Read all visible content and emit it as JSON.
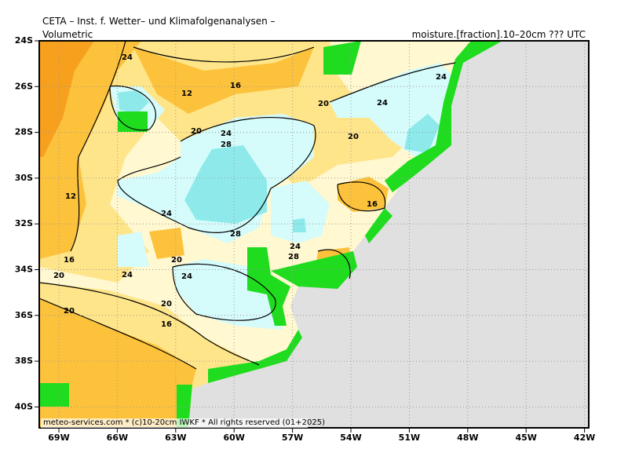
{
  "header": {
    "title": "CETA – Inst. f. Wetter– und Klimafolgenanalysen –",
    "left_label": "Volumetric",
    "right_label": "moisture.[fraction].10–20cm ??? UTC"
  },
  "footer": "meteo-services.com * (c)10-20cm IWKF * All rights reserved (01+2025)",
  "lat_labels": [
    "24S",
    "26S",
    "28S",
    "30S",
    "32S",
    "34S",
    "36S",
    "38S",
    "40S"
  ],
  "lon_labels": [
    "69W",
    "66W",
    "63W",
    "60W",
    "57W",
    "54W",
    "51W",
    "48W",
    "45W",
    "42W"
  ],
  "contour_labels": [
    "24",
    "12",
    "16",
    "20",
    "24",
    "24",
    "20",
    "24",
    "28",
    "20",
    "12",
    "16",
    "24",
    "28",
    "24",
    "28",
    "16",
    "20",
    "24",
    "24",
    "20",
    "20",
    "20",
    "16"
  ]
}
